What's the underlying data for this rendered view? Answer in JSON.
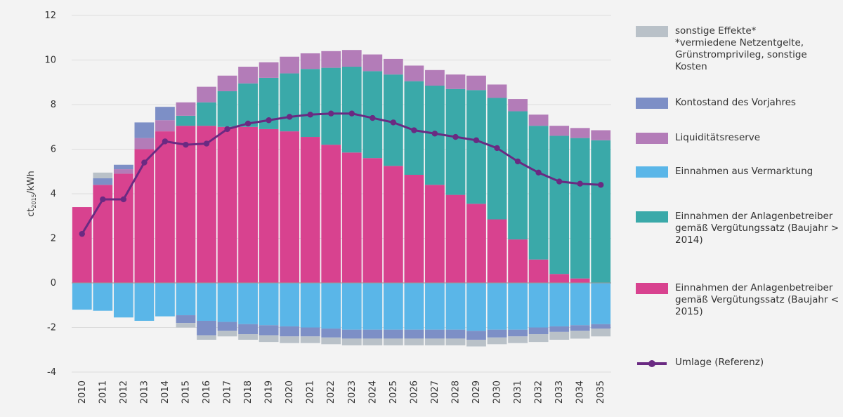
{
  "chart_data": {
    "type": "stacked_bar_line",
    "y_label": "ct",
    "y_label_sub": "2015",
    "y_label_unit": "/kWh",
    "categories": [
      "2010",
      "2011",
      "2012",
      "2013",
      "2014",
      "2015",
      "2016",
      "2017",
      "2018",
      "2019",
      "2020",
      "2021",
      "2022",
      "2023",
      "2024",
      "2025",
      "2026",
      "2027",
      "2028",
      "2029",
      "2030",
      "2031",
      "2032",
      "2033",
      "2034",
      "2035"
    ],
    "ylim": [
      -4,
      12
    ],
    "yticks": [
      -4,
      -2,
      0,
      2,
      4,
      6,
      8,
      10,
      12
    ],
    "grid": true,
    "series": [
      {
        "name": "Einnahmen der Anlagenbetreiber gemäß Vergütungssatz (Baujahr < 2015)",
        "color": "#d8428f",
        "values": [
          3.4,
          4.4,
          4.9,
          6.0,
          6.8,
          7.05,
          7.05,
          7.0,
          7.0,
          6.9,
          6.8,
          6.55,
          6.2,
          5.85,
          5.6,
          5.25,
          4.85,
          4.4,
          3.95,
          3.55,
          2.85,
          1.95,
          1.05,
          0.4,
          0.2,
          0
        ]
      },
      {
        "name": "Einnahmen der Anlagenbetreiber gemäß Vergütungssatz (Baujahr > 2014)",
        "color": "#3aa9a9",
        "values": [
          0,
          0,
          0,
          0,
          0,
          0.45,
          1.05,
          1.6,
          1.95,
          2.3,
          2.6,
          3.05,
          3.45,
          3.85,
          3.9,
          4.1,
          4.2,
          4.45,
          4.75,
          5.1,
          5.45,
          5.75,
          6.0,
          6.2,
          6.3,
          6.4
        ]
      },
      {
        "name": "Einnahmen aus Vermarktung",
        "color": "#5ab6e8",
        "values": [
          -1.2,
          -1.25,
          -1.55,
          -1.7,
          -1.5,
          -1.45,
          -1.7,
          -1.75,
          -1.85,
          -1.9,
          -1.95,
          -2.0,
          -2.05,
          -2.1,
          -2.1,
          -2.1,
          -2.1,
          -2.1,
          -2.1,
          -2.15,
          -2.1,
          -2.1,
          -2.0,
          -1.95,
          -1.9,
          -1.85
        ]
      },
      {
        "name": "Liquiditätsreserve",
        "color": "#b37cb8",
        "values": [
          0,
          0,
          0.2,
          0.5,
          0.5,
          0.6,
          0.7,
          0.7,
          0.75,
          0.7,
          0.75,
          0.7,
          0.75,
          0.75,
          0.75,
          0.7,
          0.7,
          0.7,
          0.65,
          0.65,
          0.6,
          0.55,
          0.5,
          0.45,
          0.45,
          0.45
        ]
      },
      {
        "name": "Kontostand des Vorjahres",
        "color": "#7d8fc6",
        "values": [
          0,
          0.3,
          0.2,
          0.7,
          0.6,
          -0.35,
          -0.65,
          -0.4,
          -0.45,
          -0.45,
          -0.45,
          -0.4,
          -0.4,
          -0.4,
          -0.4,
          -0.4,
          -0.4,
          -0.4,
          -0.4,
          -0.4,
          -0.35,
          -0.3,
          -0.3,
          -0.25,
          -0.25,
          -0.2
        ]
      },
      {
        "name": "sonstige Effekte*",
        "color": "#b9c1c8",
        "values": [
          0,
          0.25,
          0,
          0,
          0,
          -0.2,
          -0.2,
          -0.25,
          -0.25,
          -0.3,
          -0.3,
          -0.3,
          -0.3,
          -0.3,
          -0.3,
          -0.3,
          -0.3,
          -0.3,
          -0.3,
          -0.3,
          -0.3,
          -0.3,
          -0.35,
          -0.35,
          -0.35,
          -0.35
        ]
      }
    ],
    "legend_note": "*vermiedene Netzentgelte, Grünstromprivileg, sonstige Kosten",
    "line": {
      "name": "Umlage (Referenz)",
      "color": "#6a2a82",
      "values": [
        2.2,
        3.75,
        3.75,
        5.4,
        6.35,
        6.2,
        6.25,
        6.9,
        7.15,
        7.3,
        7.45,
        7.55,
        7.6,
        7.6,
        7.4,
        7.2,
        6.85,
        6.7,
        6.55,
        6.4,
        6.05,
        5.45,
        4.95,
        4.55,
        4.45,
        4.4
      ]
    }
  }
}
